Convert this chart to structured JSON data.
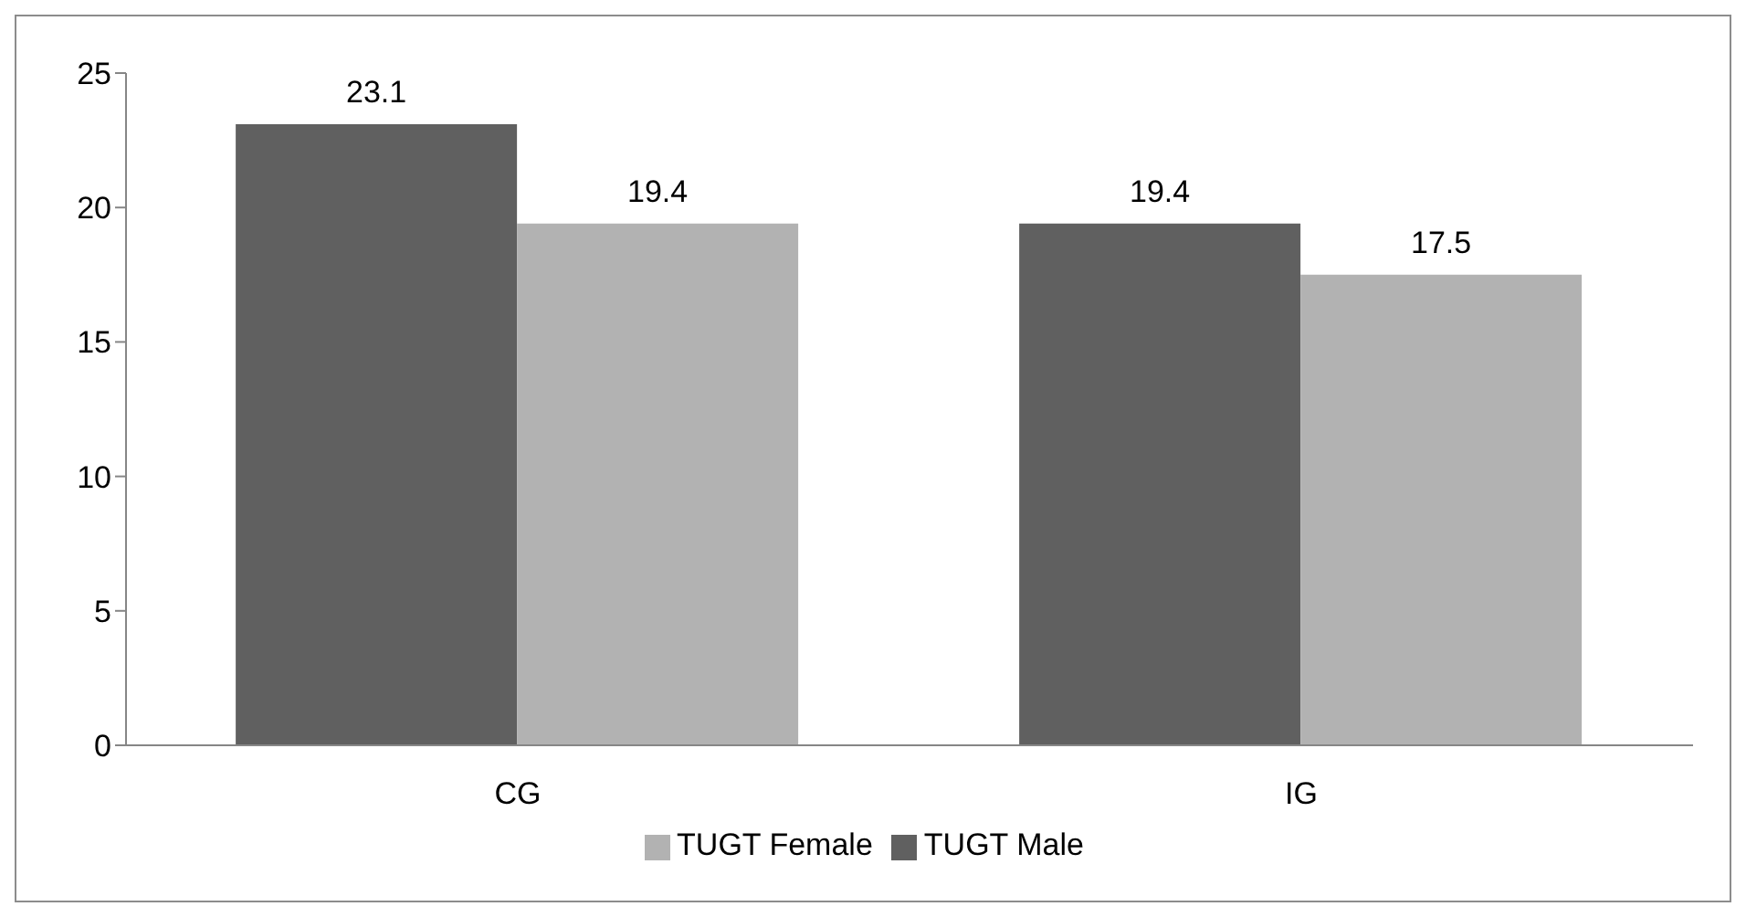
{
  "chart_data": {
    "type": "bar",
    "categories": [
      "CG",
      "IG"
    ],
    "series": [
      {
        "name": "TUGT Male",
        "color": "#606060",
        "values": [
          23.1,
          19.4
        ]
      },
      {
        "name": "TUGT Female",
        "color": "#b2b2b2",
        "values": [
          19.4,
          17.5
        ]
      }
    ],
    "ylim": [
      0,
      25
    ],
    "yticks": [
      0,
      5,
      10,
      15,
      20,
      25
    ],
    "grid": false,
    "legend": "bottom",
    "data_labels": true
  }
}
